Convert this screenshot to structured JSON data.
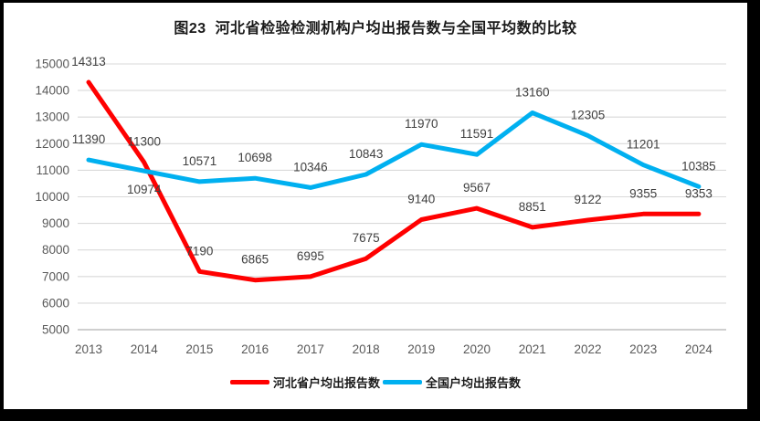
{
  "window": {
    "frame_color": "#000000",
    "canvas_color": "#ffffff"
  },
  "chart_data": {
    "type": "line",
    "title": "图23  河北省检验检测机构户均出报告数与全国平均数的比较",
    "categories": [
      "2013",
      "2014",
      "2015",
      "2016",
      "2017",
      "2018",
      "2019",
      "2020",
      "2021",
      "2022",
      "2023",
      "2024"
    ],
    "series": [
      {
        "name": "河北省户均出报告数",
        "color": "#ff0000",
        "values": [
          14313,
          11300,
          7190,
          6865,
          6995,
          7675,
          9140,
          9567,
          8851,
          9122,
          9355,
          9353
        ],
        "labels_below": []
      },
      {
        "name": "全国户均出报告数",
        "color": "#00b0f0",
        "values": [
          11390,
          10974,
          10571,
          10698,
          10346,
          10843,
          11970,
          11591,
          13160,
          12305,
          11201,
          10385
        ],
        "labels_below": [
          1
        ]
      }
    ],
    "xlabel": "",
    "ylabel": "",
    "ylim": [
      5000,
      15000
    ],
    "yticks": [
      5000,
      6000,
      7000,
      8000,
      9000,
      10000,
      11000,
      12000,
      13000,
      14000,
      15000
    ],
    "grid": true,
    "data_labels": true,
    "legend_position": "bottom",
    "colors": {
      "gridline": "#d9d9d9",
      "axis_line": "#bfbfbf",
      "tick_label": "#595959",
      "data_label": "#404040"
    }
  }
}
